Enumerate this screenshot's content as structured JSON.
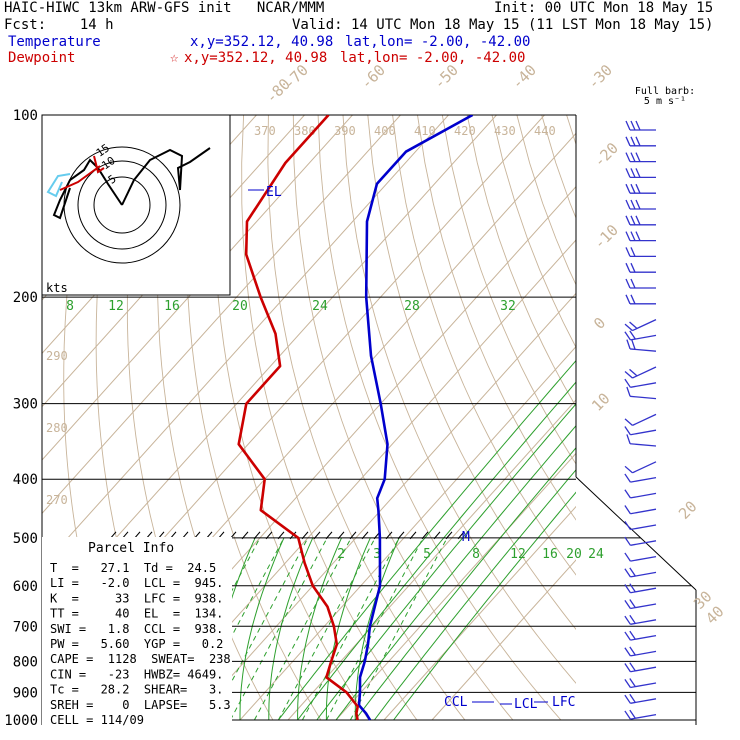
{
  "header": {
    "title": "HAIC-HIWC 13km ARW-GFS init   NCAR/MMM",
    "init": "Init: 00 UTC Mon 18 May 15",
    "fcst": "Fcst:    14 h",
    "valid": "Valid: 14 UTC Mon 18 May 15 (11 LST Mon 18 May 15)",
    "temp_label": "Temperature",
    "temp_xy": "x,y=352.12, 40.98",
    "temp_latlon": "lat,lon= -2.00, -42.00",
    "dew_label": "Dewpoint",
    "dew_star": "☆",
    "dew_xy": "x,y=352.12, 40.98",
    "dew_latlon": "lat,lon= -2.00, -42.00"
  },
  "barb_key": {
    "line1": "Full barb:",
    "line2": "5 m s⁻¹"
  },
  "hodograph": {
    "units": "kts",
    "ring_labels": [
      "5",
      "10",
      "15"
    ]
  },
  "markers": {
    "el": "EL",
    "ccl": "CCL",
    "lcl": "LCL",
    "lfc": "LFC",
    "m": "M"
  },
  "parcel_info": {
    "title": "Parcel Info",
    "rows": [
      "T  =   27.1  Td =  24.5",
      "LI =   -2.0  LCL =  945.",
      "K  =     33  LFC =  938.",
      "TT =     40  EL  =  134.",
      "SWI =   1.8  CCL =  938.",
      "PW =   5.60  YGP =   0.2",
      "CAPE =  1128  SWEAT=  238",
      "CIN =   -23  HWBZ= 4649.",
      "Tc =   28.2  SHEAR=   3.",
      "SREH =    0  LAPSE=   5.3",
      "CELL = 114/09"
    ]
  },
  "chart_data": {
    "type": "line",
    "subtype": "skew-T log-p sounding",
    "y_axis": {
      "label": "",
      "scale": "log",
      "ticks": [
        100,
        200,
        300,
        400,
        500,
        600,
        700,
        800,
        900,
        1000
      ],
      "ylim": [
        1000,
        100
      ]
    },
    "isotherm_labels": [
      "-80",
      "-70",
      "-60",
      "-50",
      "-40",
      "-30",
      "-20",
      "-10",
      "0",
      "10",
      "20",
      "30",
      "40"
    ],
    "theta_labels_top": [
      "370",
      "380",
      "390",
      "400",
      "410",
      "420",
      "430",
      "440"
    ],
    "theta_labels_left": [
      "290",
      "280",
      "270"
    ],
    "mixing_ratio_labels_upper": [
      "8",
      "12",
      "16",
      "20",
      "24",
      "28",
      "32"
    ],
    "mixing_ratio_labels_lower": [
      "2",
      "3",
      "4",
      "5",
      "6",
      "8",
      "12",
      "16",
      "20",
      "24"
    ],
    "series": [
      {
        "name": "Temperature",
        "color": "#0000cc",
        "points": [
          [
            1000,
            27.1
          ],
          [
            975,
            25
          ],
          [
            950,
            22.5
          ],
          [
            945,
            22
          ],
          [
            900,
            19.8
          ],
          [
            850,
            17
          ],
          [
            800,
            15
          ],
          [
            750,
            12.5
          ],
          [
            700,
            9.5
          ],
          [
            600,
            4
          ],
          [
            500,
            -5
          ],
          [
            450,
            -10.5
          ],
          [
            430,
            -13
          ],
          [
            400,
            -15
          ],
          [
            350,
            -21
          ],
          [
            300,
            -30
          ],
          [
            250,
            -41
          ],
          [
            200,
            -53
          ],
          [
            150,
            -67
          ],
          [
            130,
            -72
          ],
          [
            115,
            -72
          ],
          [
            100,
            -65
          ]
        ]
      },
      {
        "name": "Dewpoint",
        "color": "#cc0000",
        "points": [
          [
            1000,
            24.5
          ],
          [
            975,
            23
          ],
          [
            950,
            22
          ],
          [
            900,
            17
          ],
          [
            850,
            10
          ],
          [
            800,
            8
          ],
          [
            750,
            6
          ],
          [
            700,
            2
          ],
          [
            650,
            -3
          ],
          [
            600,
            -10
          ],
          [
            550,
            -16
          ],
          [
            500,
            -22
          ],
          [
            450,
            -35
          ],
          [
            400,
            -40
          ],
          [
            350,
            -52
          ],
          [
            300,
            -58
          ],
          [
            260,
            -58
          ],
          [
            230,
            -65
          ],
          [
            200,
            -75
          ],
          [
            170,
            -86
          ],
          [
            150,
            -92
          ],
          [
            120,
            -95
          ],
          [
            100,
            -95
          ]
        ]
      }
    ]
  },
  "colors": {
    "isobar": "#000000",
    "isotherm": "#c8b49a",
    "dry_adiabat": "#c8b49a",
    "moist_adiabat": "#2ea02e",
    "mixing_ratio": "#2ea02e",
    "temperature": "#0000cc",
    "dewpoint": "#cc0000",
    "wind_barb": "#3333cc",
    "hodograph": "#000000"
  }
}
